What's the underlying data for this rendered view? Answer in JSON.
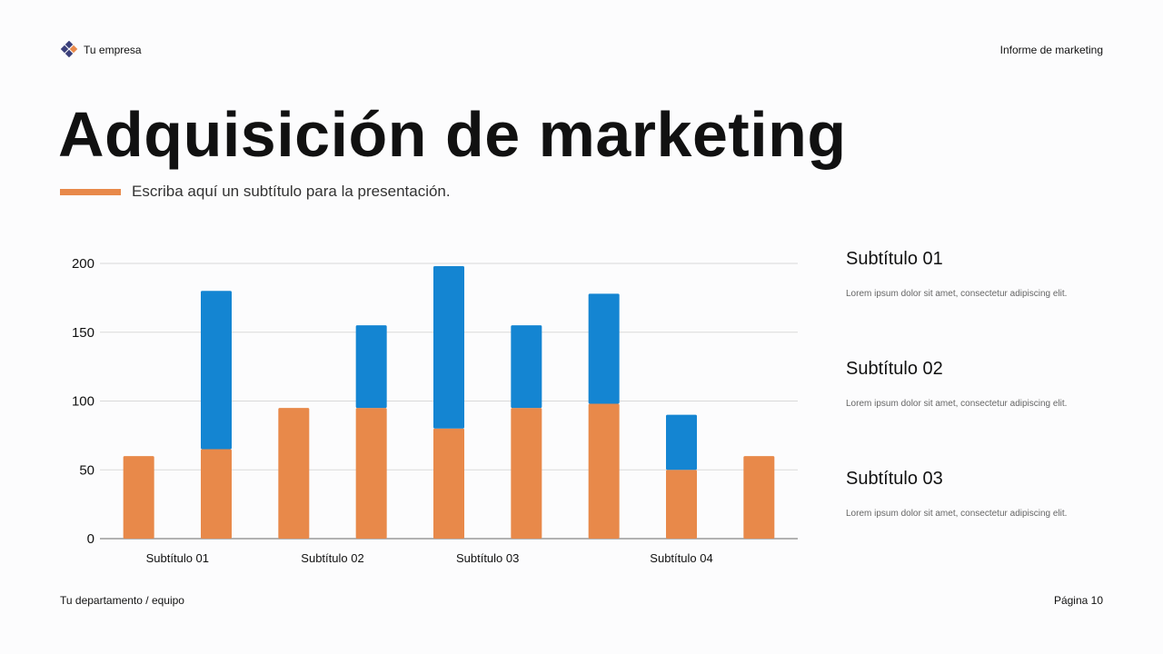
{
  "header": {
    "company": "Tu empresa",
    "report_name": "Informe de marketing"
  },
  "title": "Adquisición de marketing",
  "subtitle": "Escriba aquí un subtítulo para la presentación.",
  "colors": {
    "accent": "#E8894A",
    "blue": "#1485D2",
    "grid": "#d9d9d9"
  },
  "chart_data": {
    "type": "bar",
    "stacked": true,
    "groups": [
      "Subtítulo 01",
      "Subtítulo 02",
      "Subtítulo 03",
      "Subtítulo 04"
    ],
    "bars": [
      {
        "group": 0,
        "orange": 60,
        "blue": 0
      },
      {
        "group": 0,
        "orange": 65,
        "blue": 115
      },
      {
        "group": 1,
        "orange": 95,
        "blue": 0
      },
      {
        "group": 1,
        "orange": 95,
        "blue": 60
      },
      {
        "group": 2,
        "orange": 80,
        "blue": 118
      },
      {
        "group": 2,
        "orange": 95,
        "blue": 60
      },
      {
        "group": 3,
        "orange": 98,
        "blue": 80
      },
      {
        "group": 3,
        "orange": 50,
        "blue": 40
      },
      {
        "group": 3,
        "orange": 60,
        "blue": 0
      }
    ],
    "yticks": [
      0,
      50,
      100,
      150,
      200
    ],
    "ylim": [
      0,
      200
    ],
    "grid": true,
    "legend": "none"
  },
  "sidebar": [
    {
      "title": "Subtítulo 01",
      "text": "Lorem ipsum dolor sit amet, consectetur adipiscing elit."
    },
    {
      "title": "Subtítulo 02",
      "text": "Lorem ipsum dolor sit amet, consectetur adipiscing elit."
    },
    {
      "title": "Subtítulo 03",
      "text": "Lorem ipsum dolor sit amet, consectetur adipiscing elit."
    }
  ],
  "footer": {
    "department": "Tu departamento / equipo",
    "page": "Página 10"
  }
}
